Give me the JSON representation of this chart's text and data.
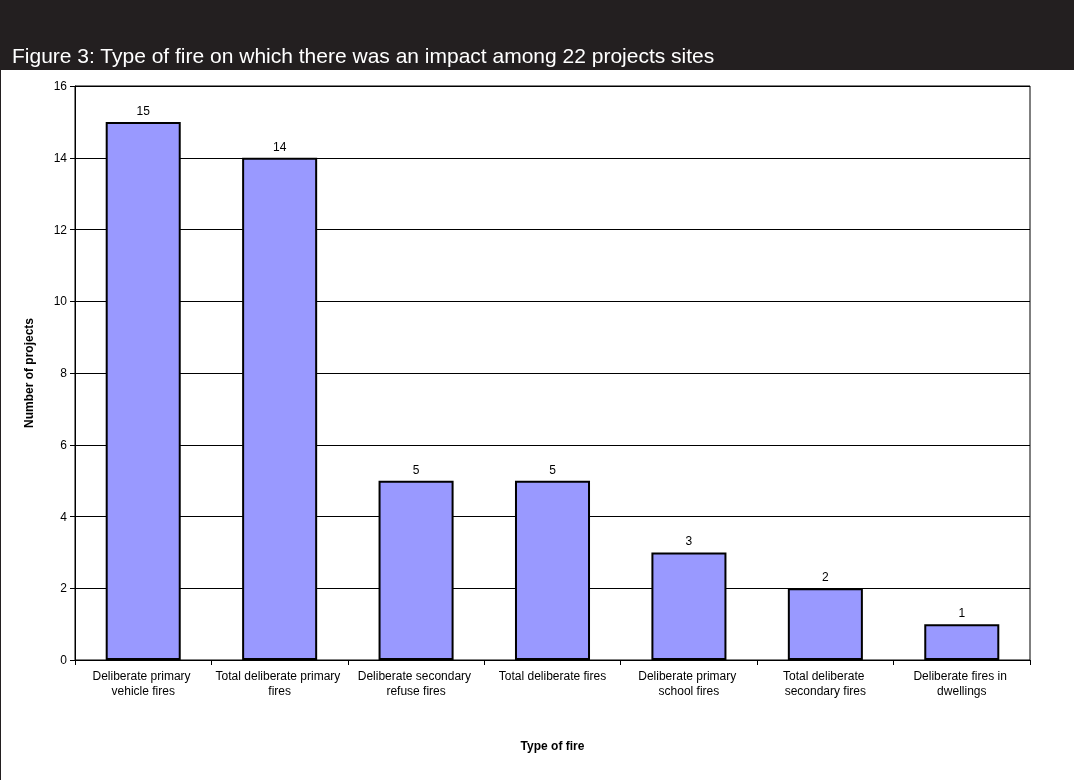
{
  "chart_data": {
    "type": "bar",
    "title": "Figure 3: Type of fire on which there was an impact among 22 projects sites",
    "xlabel": "Type of fire",
    "ylabel": "Number of projects",
    "categories": [
      "Deliberate primary vehicle fires",
      "Total deliberate primary fires",
      "Deliberate secondary refuse fires",
      "Total deliberate fires",
      "Deliberate primary school fires",
      "Total deliberate secondary fires",
      "Deliberate fires in dwellings"
    ],
    "values": [
      15,
      14,
      5,
      5,
      3,
      2,
      1
    ],
    "color": "#9999ff",
    "ylim": [
      0,
      16
    ],
    "yticks": [
      0,
      2,
      4,
      6,
      8,
      10,
      12,
      14,
      16
    ],
    "grid": "y",
    "data_labels": true
  }
}
